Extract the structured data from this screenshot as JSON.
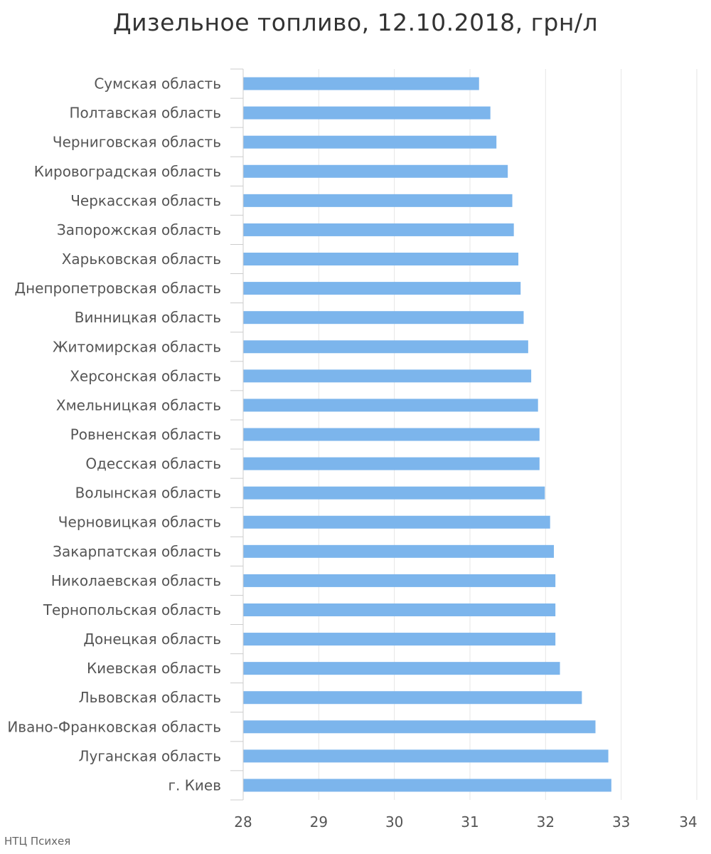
{
  "chart_data": {
    "type": "bar",
    "orientation": "horizontal",
    "title": "Дизельное топливо, 12.10.2018, грн/л",
    "xlabel": "",
    "ylabel": "",
    "xlim": [
      28,
      34
    ],
    "x_ticks": [
      "28",
      "29",
      "30",
      "31",
      "32",
      "33",
      "34"
    ],
    "grid": true,
    "bar_color": "#7cb5ec",
    "categories": [
      "Сумская область",
      "Полтавская область",
      "Черниговская область",
      "Кировоградская область",
      "Черкасская область",
      "Запорожская область",
      "Харьковская область",
      "Днепропетровская область",
      "Винницкая область",
      "Житомирская область",
      "Херсонская область",
      "Хмельницкая область",
      "Ровненская область",
      "Одесская область",
      "Волынская область",
      "Черновицкая область",
      "Закарпатская область",
      "Николаевская область",
      "Тернопольская область",
      "Донецкая область",
      "Киевская область",
      "Львовская область",
      "Ивано-Франковская область",
      "Луганская область",
      "г. Киев"
    ],
    "values": [
      31.12,
      31.27,
      31.35,
      31.5,
      31.56,
      31.58,
      31.64,
      31.67,
      31.71,
      31.77,
      31.81,
      31.9,
      31.92,
      31.92,
      31.99,
      32.06,
      32.11,
      32.13,
      32.13,
      32.13,
      32.19,
      32.48,
      32.66,
      32.83,
      32.87
    ]
  },
  "credit": "НТЦ Психея"
}
